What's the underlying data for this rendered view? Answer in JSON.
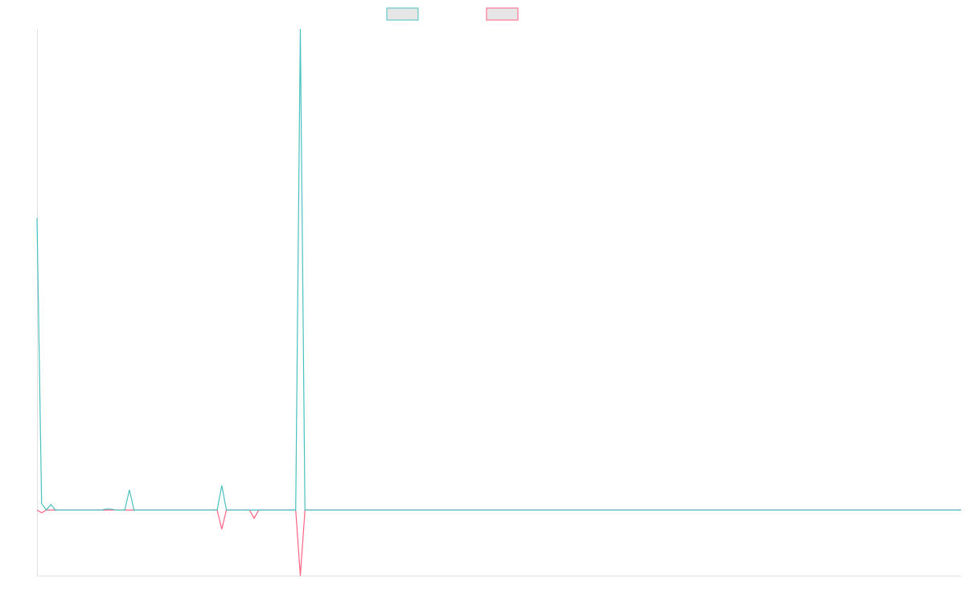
{
  "chart_data": {
    "type": "line",
    "x": [
      0,
      1,
      2,
      3,
      4,
      14,
      15,
      16,
      17,
      19,
      20,
      21,
      39,
      40,
      41,
      46,
      47,
      48,
      56,
      57,
      58,
      200
    ],
    "xlim": [
      0,
      200
    ],
    "ylim": [
      -0.12,
      0.88
    ],
    "series": [
      {
        "color": "#4bc0c0",
        "values": [
          0.534,
          0.012,
          0,
          0.01,
          0,
          0,
          0.002,
          0.002,
          0,
          0,
          0.037,
          0,
          0,
          0.045,
          0,
          0,
          0,
          0,
          0,
          0.88,
          0,
          0
        ]
      },
      {
        "color": "#ff6384",
        "values": [
          0,
          -0.005,
          0,
          0,
          0,
          0,
          0,
          0,
          0,
          0,
          0,
          0,
          0,
          -0.035,
          0,
          0,
          -0.015,
          0,
          0,
          -0.12,
          0,
          0
        ]
      }
    ]
  }
}
